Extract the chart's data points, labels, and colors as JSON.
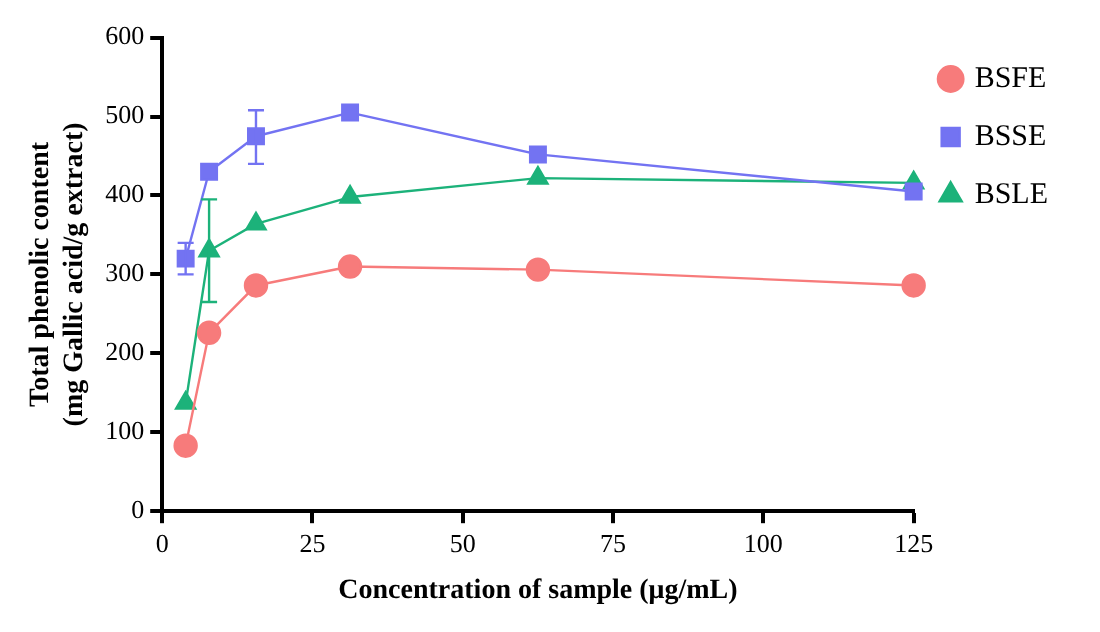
{
  "chart_data": {
    "type": "line",
    "xlabel": "Concentration of sample (μg/mL)",
    "ylabel": "Total phenolic content\n(mg Gallic acid/g extract)",
    "x": [
      3.9,
      7.8,
      15.6,
      31.25,
      62.5,
      125
    ],
    "series": [
      {
        "name": "BSFE",
        "color": "#f77b7b",
        "marker": "circle",
        "values": [
          83,
          226,
          286,
          310,
          306,
          286
        ]
      },
      {
        "name": "BSSE",
        "color": "#7373f2",
        "marker": "square",
        "values": [
          320,
          430,
          475,
          505,
          452,
          405
        ],
        "errors": [
          20,
          null,
          [
            440,
            508
          ],
          null,
          null,
          null
        ]
      },
      {
        "name": "BSLE",
        "color": "#1cb27a",
        "marker": "triangle",
        "values": [
          137,
          330,
          364,
          398,
          422,
          416
        ],
        "errors": [
          null,
          [
            265,
            395
          ],
          null,
          null,
          null,
          null
        ]
      }
    ],
    "xlim": [
      0,
      125
    ],
    "xticks": [
      0,
      25,
      50,
      75,
      100,
      125
    ],
    "ylim": [
      0,
      600
    ],
    "yticks": [
      0,
      100,
      200,
      300,
      400,
      500,
      600
    ],
    "grid": false,
    "legend": "right",
    "line_style": "solid"
  }
}
